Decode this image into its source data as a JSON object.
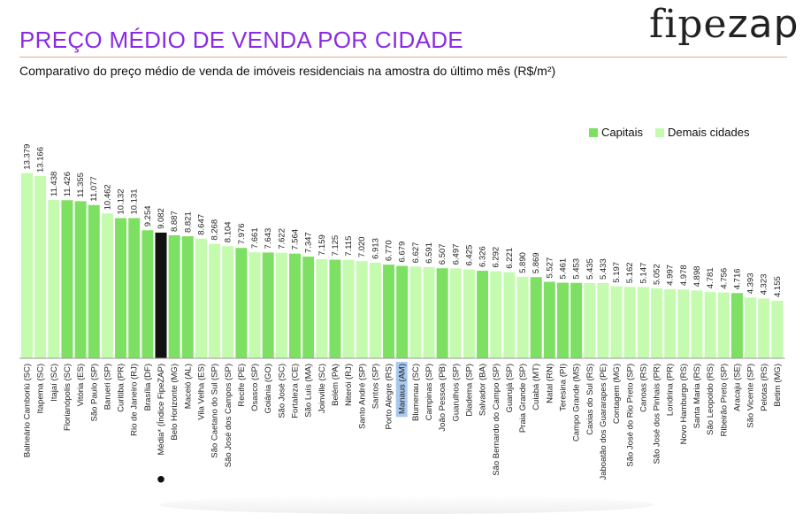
{
  "header": {
    "title": "PREÇO MÉDIO DE VENDA POR CIDADE",
    "subtitle": "Comparativo do preço médio de venda de imóveis residenciais na amostra do último mês (R$/m²)",
    "logo_part1": "fipe",
    "logo_part2": "zap"
  },
  "legend": {
    "capitals_label": "Capitais",
    "others_label": "Demais cidades",
    "position": "top-right"
  },
  "colors": {
    "capital": "#7ee063",
    "other": "#c4fbaf",
    "index": "#111111",
    "title": "#8a2be2",
    "highlight_label_bg": "#a9c8ee"
  },
  "chart_data": {
    "type": "bar",
    "title": "PREÇO MÉDIO DE VENDA POR CIDADE",
    "subtitle": "Comparativo do preço médio de venda de imóveis residenciais na amostra do último mês (R$/m²)",
    "ylim": [
      0,
      14000
    ],
    "grid": false,
    "legend_position": "top-right",
    "series": [
      {
        "name": "Capitais"
      },
      {
        "name": "Demais cidades"
      }
    ],
    "bars": [
      {
        "label": "Balneário Camboriú (SC)",
        "value": 13379,
        "display": "13.379",
        "type": "other"
      },
      {
        "label": "Itapema (SC)",
        "value": 13166,
        "display": "13.166",
        "type": "other"
      },
      {
        "label": "Itajaí (SC)",
        "value": 11438,
        "display": "11.438",
        "type": "other"
      },
      {
        "label": "Florianópolis (SC)",
        "value": 11426,
        "display": "11.426",
        "type": "capital"
      },
      {
        "label": "Vitória (ES)",
        "value": 11355,
        "display": "11.355",
        "type": "capital"
      },
      {
        "label": "São Paulo (SP)",
        "value": 11077,
        "display": "11.077",
        "type": "capital"
      },
      {
        "label": "Barueri (SP)",
        "value": 10462,
        "display": "10.462",
        "type": "other"
      },
      {
        "label": "Curitiba (PR)",
        "value": 10132,
        "display": "10.132",
        "type": "capital"
      },
      {
        "label": "Rio de Janeiro (RJ)",
        "value": 10131,
        "display": "10.131",
        "type": "capital"
      },
      {
        "label": "Brasília (DF)",
        "value": 9254,
        "display": "9.254",
        "type": "capital"
      },
      {
        "label": "Média* (Índice FipeZAP)",
        "value": 9082,
        "display": "9.082",
        "type": "index"
      },
      {
        "label": "Belo Horizonte (MG)",
        "value": 8887,
        "display": "8.887",
        "type": "capital"
      },
      {
        "label": "Maceió (AL)",
        "value": 8821,
        "display": "8.821",
        "type": "capital"
      },
      {
        "label": "Vila Velha (ES)",
        "value": 8647,
        "display": "8.647",
        "type": "other"
      },
      {
        "label": "São Caetano do Sul (SP)",
        "value": 8268,
        "display": "8.268",
        "type": "other"
      },
      {
        "label": "São José dos Campos (SP)",
        "value": 8104,
        "display": "8.104",
        "type": "other"
      },
      {
        "label": "Recife (PE)",
        "value": 7976,
        "display": "7.976",
        "type": "capital"
      },
      {
        "label": "Osasco (SP)",
        "value": 7661,
        "display": "7.661",
        "type": "other"
      },
      {
        "label": "Goiânia (GO)",
        "value": 7643,
        "display": "7.643",
        "type": "capital"
      },
      {
        "label": "São José (SC)",
        "value": 7622,
        "display": "7.622",
        "type": "other"
      },
      {
        "label": "Fortaleza (CE)",
        "value": 7564,
        "display": "7.564",
        "type": "capital"
      },
      {
        "label": "São Luís (MA)",
        "value": 7347,
        "display": "7.347",
        "type": "capital"
      },
      {
        "label": "Joinville (SC)",
        "value": 7159,
        "display": "7.159",
        "type": "other"
      },
      {
        "label": "Belém (PA)",
        "value": 7125,
        "display": "7.125",
        "type": "capital"
      },
      {
        "label": "Niterói (RJ)",
        "value": 7115,
        "display": "7.115",
        "type": "other"
      },
      {
        "label": "Santo André (SP)",
        "value": 7020,
        "display": "7.020",
        "type": "other"
      },
      {
        "label": "Santos (SP)",
        "value": 6913,
        "display": "6.913",
        "type": "other"
      },
      {
        "label": "Porto Alegre (RS)",
        "value": 6770,
        "display": "6.770",
        "type": "capital"
      },
      {
        "label": "Manaus (AM)",
        "value": 6679,
        "display": "6.679",
        "type": "capital",
        "highlight": true
      },
      {
        "label": "Blumenau (SC)",
        "value": 6627,
        "display": "6.627",
        "type": "other"
      },
      {
        "label": "Campinas (SP)",
        "value": 6591,
        "display": "6.591",
        "type": "other"
      },
      {
        "label": "João Pessoa (PB)",
        "value": 6507,
        "display": "6.507",
        "type": "capital"
      },
      {
        "label": "Guarulhos (SP)",
        "value": 6497,
        "display": "6.497",
        "type": "other"
      },
      {
        "label": "Diadema (SP)",
        "value": 6425,
        "display": "6.425",
        "type": "other"
      },
      {
        "label": "Salvador (BA)",
        "value": 6326,
        "display": "6.326",
        "type": "capital"
      },
      {
        "label": "São Bernardo do Campo (SP)",
        "value": 6292,
        "display": "6.292",
        "type": "other"
      },
      {
        "label": "Guarujá (SP)",
        "value": 6221,
        "display": "6.221",
        "type": "other"
      },
      {
        "label": "Praia Grande (SP)",
        "value": 5890,
        "display": "5.890",
        "type": "other"
      },
      {
        "label": "Cuiabá (MT)",
        "value": 5869,
        "display": "5.869",
        "type": "capital"
      },
      {
        "label": "Natal (RN)",
        "value": 5527,
        "display": "5.527",
        "type": "capital"
      },
      {
        "label": "Teresina (PI)",
        "value": 5461,
        "display": "5.461",
        "type": "capital"
      },
      {
        "label": "Campo Grande (MS)",
        "value": 5453,
        "display": "5.453",
        "type": "capital"
      },
      {
        "label": "Caxias do Sul (RS)",
        "value": 5435,
        "display": "5.435",
        "type": "other"
      },
      {
        "label": "Jaboatão dos Guararapes (PE)",
        "value": 5433,
        "display": "5.433",
        "type": "other"
      },
      {
        "label": "Contagem (MG)",
        "value": 5197,
        "display": "5.197",
        "type": "other"
      },
      {
        "label": "São José do Rio Preto (SP)",
        "value": 5162,
        "display": "5.162",
        "type": "other"
      },
      {
        "label": "Canoas (RS)",
        "value": 5147,
        "display": "5.147",
        "type": "other"
      },
      {
        "label": "São José dos Pinhais (PR)",
        "value": 5052,
        "display": "5.052",
        "type": "other"
      },
      {
        "label": "Londrina (PR)",
        "value": 4997,
        "display": "4.997",
        "type": "other"
      },
      {
        "label": "Novo Hamburgo (RS)",
        "value": 4978,
        "display": "4.978",
        "type": "other"
      },
      {
        "label": "Santa Maria (RS)",
        "value": 4898,
        "display": "4.898",
        "type": "other"
      },
      {
        "label": "São Leopoldo (RS)",
        "value": 4781,
        "display": "4.781",
        "type": "other"
      },
      {
        "label": "Ribeirão Preto (SP)",
        "value": 4756,
        "display": "4.756",
        "type": "other"
      },
      {
        "label": "Aracaju (SE)",
        "value": 4716,
        "display": "4.716",
        "type": "capital"
      },
      {
        "label": "São Vicente (SP)",
        "value": 4393,
        "display": "4.393",
        "type": "other"
      },
      {
        "label": "Pelotas (RS)",
        "value": 4323,
        "display": "4.323",
        "type": "other"
      },
      {
        "label": "Betim (MG)",
        "value": 4155,
        "display": "4.155",
        "type": "other"
      }
    ]
  }
}
